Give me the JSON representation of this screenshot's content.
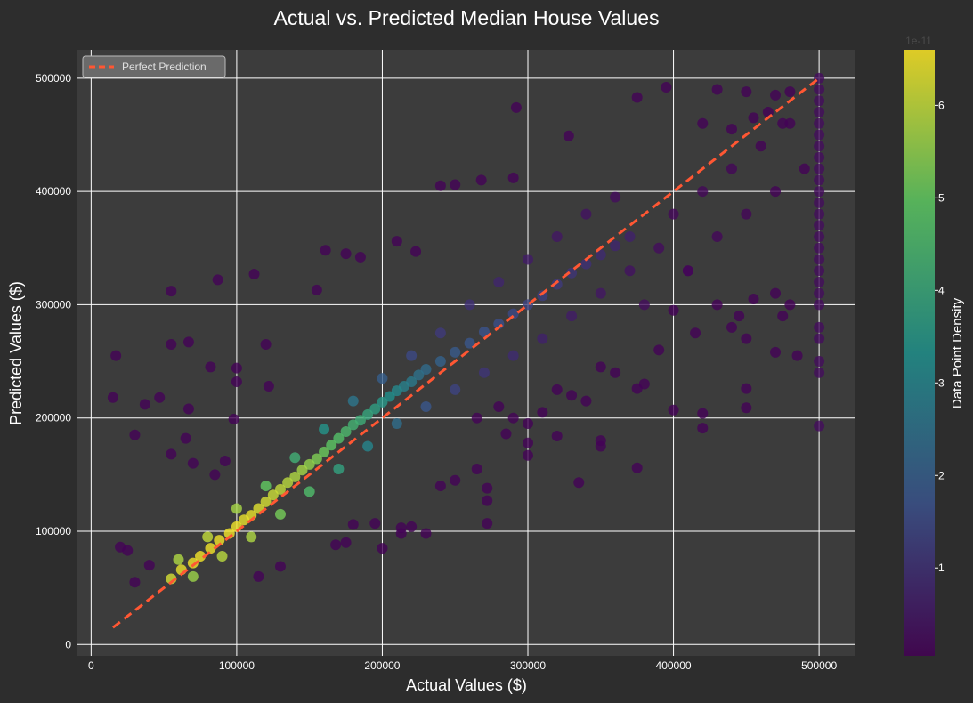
{
  "chart_data": {
    "type": "scatter",
    "title": "Actual vs. Predicted Median House Values",
    "xlabel": "Actual Values ($)",
    "ylabel": "Predicted Values ($)",
    "xlim": [
      -10000,
      525000
    ],
    "ylim": [
      -10000,
      525000
    ],
    "xticks": [
      "0",
      "100000",
      "200000",
      "300000",
      "400000",
      "500000"
    ],
    "yticks": [
      "0",
      "100000",
      "200000",
      "300000",
      "400000",
      "500000"
    ],
    "xtick_values": [
      0,
      100000,
      200000,
      300000,
      400000,
      500000
    ],
    "ytick_values": [
      0,
      100000,
      200000,
      300000,
      400000,
      500000
    ],
    "grid": true,
    "legend": {
      "location": "top-left",
      "entries": [
        "Perfect Prediction"
      ]
    },
    "reference_line": {
      "name": "Perfect Prediction",
      "x": [
        15000,
        500000
      ],
      "y": [
        15000,
        500000
      ],
      "color": "#ff5733",
      "style": "dashed"
    },
    "colorbar": {
      "label": "Data Point Density",
      "tick_labels": [
        "1",
        "2",
        "3",
        "4",
        "5",
        "6"
      ],
      "tick_values": [
        1,
        2,
        3,
        4,
        5,
        6
      ],
      "range": [
        0.05,
        6.6
      ],
      "colormap": [
        "#440154",
        "#3b528b",
        "#21918c",
        "#5ec962",
        "#fde725"
      ],
      "offset_label": "1e-11"
    },
    "points": [
      [
        55000,
        58000,
        6.2
      ],
      [
        62000,
        66000,
        6.4
      ],
      [
        70000,
        72000,
        6.5
      ],
      [
        75000,
        78000,
        6.5
      ],
      [
        82000,
        85000,
        6.5
      ],
      [
        88000,
        92000,
        6.5
      ],
      [
        95000,
        98000,
        6.5
      ],
      [
        100000,
        104000,
        6.5
      ],
      [
        105000,
        110000,
        6.4
      ],
      [
        110000,
        114000,
        6.4
      ],
      [
        115000,
        120000,
        6.3
      ],
      [
        120000,
        126000,
        6.2
      ],
      [
        125000,
        132000,
        6.1
      ],
      [
        130000,
        137000,
        6.0
      ],
      [
        135000,
        143000,
        5.9
      ],
      [
        140000,
        148000,
        5.8
      ],
      [
        145000,
        154000,
        5.7
      ],
      [
        150000,
        159000,
        5.5
      ],
      [
        155000,
        164000,
        5.3
      ],
      [
        160000,
        170000,
        5.1
      ],
      [
        165000,
        176000,
        4.9
      ],
      [
        170000,
        182000,
        4.7
      ],
      [
        175000,
        188000,
        4.5
      ],
      [
        180000,
        194000,
        4.3
      ],
      [
        185000,
        198000,
        4.1
      ],
      [
        190000,
        203000,
        3.9
      ],
      [
        195000,
        208000,
        3.7
      ],
      [
        200000,
        214000,
        3.5
      ],
      [
        205000,
        219000,
        3.3
      ],
      [
        210000,
        224000,
        3.1
      ],
      [
        215000,
        228000,
        2.9
      ],
      [
        220000,
        232000,
        2.7
      ],
      [
        225000,
        238000,
        2.5
      ],
      [
        230000,
        243000,
        2.3
      ],
      [
        240000,
        250000,
        2.1
      ],
      [
        250000,
        258000,
        1.9
      ],
      [
        260000,
        266000,
        1.8
      ],
      [
        270000,
        276000,
        1.7
      ],
      [
        280000,
        283000,
        1.6
      ],
      [
        290000,
        292000,
        1.5
      ],
      [
        300000,
        300000,
        1.4
      ],
      [
        310000,
        308000,
        1.3
      ],
      [
        320000,
        318000,
        1.2
      ],
      [
        330000,
        328000,
        1.1
      ],
      [
        340000,
        336000,
        1.0
      ],
      [
        350000,
        344000,
        0.9
      ],
      [
        360000,
        352000,
        0.8
      ],
      [
        370000,
        360000,
        0.7
      ],
      [
        60000,
        75000,
        5.8
      ],
      [
        70000,
        60000,
        5.6
      ],
      [
        80000,
        95000,
        6.0
      ],
      [
        90000,
        78000,
        5.9
      ],
      [
        100000,
        120000,
        5.7
      ],
      [
        110000,
        95000,
        5.8
      ],
      [
        120000,
        140000,
        5.0
      ],
      [
        130000,
        115000,
        5.2
      ],
      [
        140000,
        165000,
        4.2
      ],
      [
        150000,
        135000,
        4.6
      ],
      [
        160000,
        190000,
        3.4
      ],
      [
        170000,
        155000,
        3.8
      ],
      [
        180000,
        215000,
        2.6
      ],
      [
        190000,
        175000,
        3.0
      ],
      [
        200000,
        235000,
        2.0
      ],
      [
        210000,
        195000,
        2.4
      ],
      [
        220000,
        255000,
        1.5
      ],
      [
        230000,
        210000,
        1.8
      ],
      [
        240000,
        275000,
        1.2
      ],
      [
        250000,
        225000,
        1.4
      ],
      [
        260000,
        300000,
        1.0
      ],
      [
        270000,
        240000,
        1.1
      ],
      [
        280000,
        320000,
        0.8
      ],
      [
        290000,
        255000,
        0.9
      ],
      [
        300000,
        340000,
        0.6
      ],
      [
        310000,
        270000,
        0.7
      ],
      [
        320000,
        360000,
        0.5
      ],
      [
        330000,
        290000,
        0.6
      ],
      [
        340000,
        380000,
        0.4
      ],
      [
        350000,
        310000,
        0.5
      ],
      [
        360000,
        395000,
        0.3
      ],
      [
        370000,
        330000,
        0.4
      ],
      [
        380000,
        300000,
        0.3
      ],
      [
        390000,
        350000,
        0.3
      ],
      [
        400000,
        380000,
        0.2
      ],
      [
        410000,
        330000,
        0.2
      ],
      [
        420000,
        400000,
        0.2
      ],
      [
        430000,
        360000,
        0.2
      ],
      [
        440000,
        420000,
        0.15
      ],
      [
        450000,
        380000,
        0.15
      ],
      [
        460000,
        440000,
        0.1
      ],
      [
        470000,
        400000,
        0.1
      ],
      [
        480000,
        460000,
        0.1
      ],
      [
        490000,
        420000,
        0.1
      ],
      [
        500000,
        500000,
        0.3
      ],
      [
        500000,
        490000,
        0.3
      ],
      [
        500000,
        480000,
        0.3
      ],
      [
        500000,
        470000,
        0.3
      ],
      [
        500000,
        460000,
        0.3
      ],
      [
        500000,
        450000,
        0.3
      ],
      [
        500000,
        440000,
        0.3
      ],
      [
        500000,
        430000,
        0.3
      ],
      [
        500000,
        420000,
        0.3
      ],
      [
        500000,
        410000,
        0.3
      ],
      [
        500000,
        400000,
        0.3
      ],
      [
        500000,
        390000,
        0.3
      ],
      [
        500000,
        380000,
        0.3
      ],
      [
        500000,
        370000,
        0.3
      ],
      [
        500000,
        360000,
        0.3
      ],
      [
        500000,
        350000,
        0.3
      ],
      [
        500000,
        340000,
        0.3
      ],
      [
        500000,
        330000,
        0.3
      ],
      [
        500000,
        320000,
        0.3
      ],
      [
        500000,
        310000,
        0.3
      ],
      [
        500000,
        300000,
        0.3
      ],
      [
        500000,
        280000,
        0.3
      ],
      [
        500000,
        270000,
        0.3
      ],
      [
        500000,
        250000,
        0.3
      ],
      [
        500000,
        240000,
        0.3
      ],
      [
        500000,
        193000,
        0.3
      ],
      [
        15000,
        218000,
        0.1
      ],
      [
        17000,
        255000,
        0.1
      ],
      [
        37000,
        212000,
        0.1
      ],
      [
        47000,
        218000,
        0.1
      ],
      [
        55000,
        312000,
        0.1
      ],
      [
        55000,
        265000,
        0.1
      ],
      [
        67000,
        267000,
        0.1
      ],
      [
        67000,
        208000,
        0.1
      ],
      [
        87000,
        322000,
        0.1
      ],
      [
        82000,
        245000,
        0.1
      ],
      [
        112000,
        327000,
        0.1
      ],
      [
        120000,
        265000,
        0.1
      ],
      [
        100000,
        244000,
        0.1
      ],
      [
        55000,
        168000,
        0.1
      ],
      [
        30000,
        185000,
        0.1
      ],
      [
        65000,
        182000,
        0.1
      ],
      [
        98000,
        199000,
        0.1
      ],
      [
        100000,
        232000,
        0.1
      ],
      [
        122000,
        228000,
        0.1
      ],
      [
        161000,
        348000,
        0.1
      ],
      [
        175000,
        345000,
        0.1
      ],
      [
        185000,
        342000,
        0.1
      ],
      [
        155000,
        313000,
        0.1
      ],
      [
        250000,
        406000,
        0.1
      ],
      [
        268000,
        410000,
        0.1
      ],
      [
        290000,
        412000,
        0.1
      ],
      [
        328000,
        449000,
        0.1
      ],
      [
        292000,
        474000,
        0.1
      ],
      [
        375000,
        483000,
        0.1
      ],
      [
        395000,
        492000,
        0.1
      ],
      [
        430000,
        490000,
        0.1
      ],
      [
        450000,
        488000,
        0.1
      ],
      [
        470000,
        485000,
        0.1
      ],
      [
        480000,
        488000,
        0.1
      ],
      [
        210000,
        356000,
        0.1
      ],
      [
        240000,
        405000,
        0.1
      ],
      [
        223000,
        347000,
        0.1
      ],
      [
        20000,
        86000,
        0.1
      ],
      [
        25000,
        83000,
        0.1
      ],
      [
        40000,
        70000,
        0.1
      ],
      [
        200000,
        85000,
        0.1
      ],
      [
        213000,
        98000,
        0.1
      ],
      [
        230000,
        98000,
        0.1
      ],
      [
        213000,
        103000,
        0.1
      ],
      [
        220000,
        104000,
        0.1
      ],
      [
        272000,
        107000,
        0.1
      ],
      [
        272000,
        127000,
        0.1
      ],
      [
        272000,
        138000,
        0.1
      ],
      [
        265000,
        155000,
        0.1
      ],
      [
        240000,
        140000,
        0.1
      ],
      [
        250000,
        145000,
        0.1
      ],
      [
        335000,
        143000,
        0.1
      ],
      [
        375000,
        156000,
        0.1
      ],
      [
        300000,
        167000,
        0.1
      ],
      [
        300000,
        178000,
        0.1
      ],
      [
        350000,
        175000,
        0.1
      ],
      [
        350000,
        180000,
        0.1
      ],
      [
        420000,
        191000,
        0.1
      ],
      [
        420000,
        204000,
        0.1
      ],
      [
        450000,
        209000,
        0.1
      ],
      [
        400000,
        207000,
        0.1
      ],
      [
        450000,
        226000,
        0.1
      ],
      [
        375000,
        226000,
        0.1
      ],
      [
        320000,
        184000,
        0.1
      ],
      [
        285000,
        186000,
        0.1
      ],
      [
        175000,
        90000,
        0.1
      ],
      [
        168000,
        88000,
        0.1
      ],
      [
        180000,
        106000,
        0.1
      ],
      [
        195000,
        107000,
        0.1
      ],
      [
        115000,
        60000,
        0.1
      ],
      [
        130000,
        69000,
        0.1
      ],
      [
        70000,
        160000,
        0.1
      ],
      [
        85000,
        150000,
        0.1
      ],
      [
        92000,
        162000,
        0.1
      ],
      [
        30000,
        55000,
        0.1
      ],
      [
        420000,
        460000,
        0.1
      ],
      [
        440000,
        455000,
        0.1
      ],
      [
        455000,
        465000,
        0.1
      ],
      [
        465000,
        470000,
        0.1
      ],
      [
        475000,
        460000,
        0.1
      ],
      [
        410000,
        330000,
        0.1
      ],
      [
        430000,
        300000,
        0.1
      ],
      [
        445000,
        290000,
        0.1
      ],
      [
        455000,
        305000,
        0.1
      ],
      [
        470000,
        310000,
        0.1
      ],
      [
        475000,
        290000,
        0.1
      ],
      [
        480000,
        300000,
        0.1
      ],
      [
        485000,
        255000,
        0.1
      ],
      [
        470000,
        258000,
        0.1
      ],
      [
        450000,
        270000,
        0.1
      ],
      [
        440000,
        280000,
        0.1
      ],
      [
        415000,
        275000,
        0.1
      ],
      [
        400000,
        295000,
        0.1
      ],
      [
        390000,
        260000,
        0.1
      ],
      [
        380000,
        230000,
        0.1
      ],
      [
        360000,
        240000,
        0.1
      ],
      [
        350000,
        245000,
        0.1
      ],
      [
        340000,
        215000,
        0.1
      ],
      [
        330000,
        220000,
        0.1
      ],
      [
        320000,
        225000,
        0.1
      ],
      [
        310000,
        205000,
        0.1
      ],
      [
        300000,
        195000,
        0.1
      ],
      [
        290000,
        200000,
        0.1
      ],
      [
        280000,
        210000,
        0.1
      ],
      [
        265000,
        200000,
        0.1
      ]
    ]
  }
}
